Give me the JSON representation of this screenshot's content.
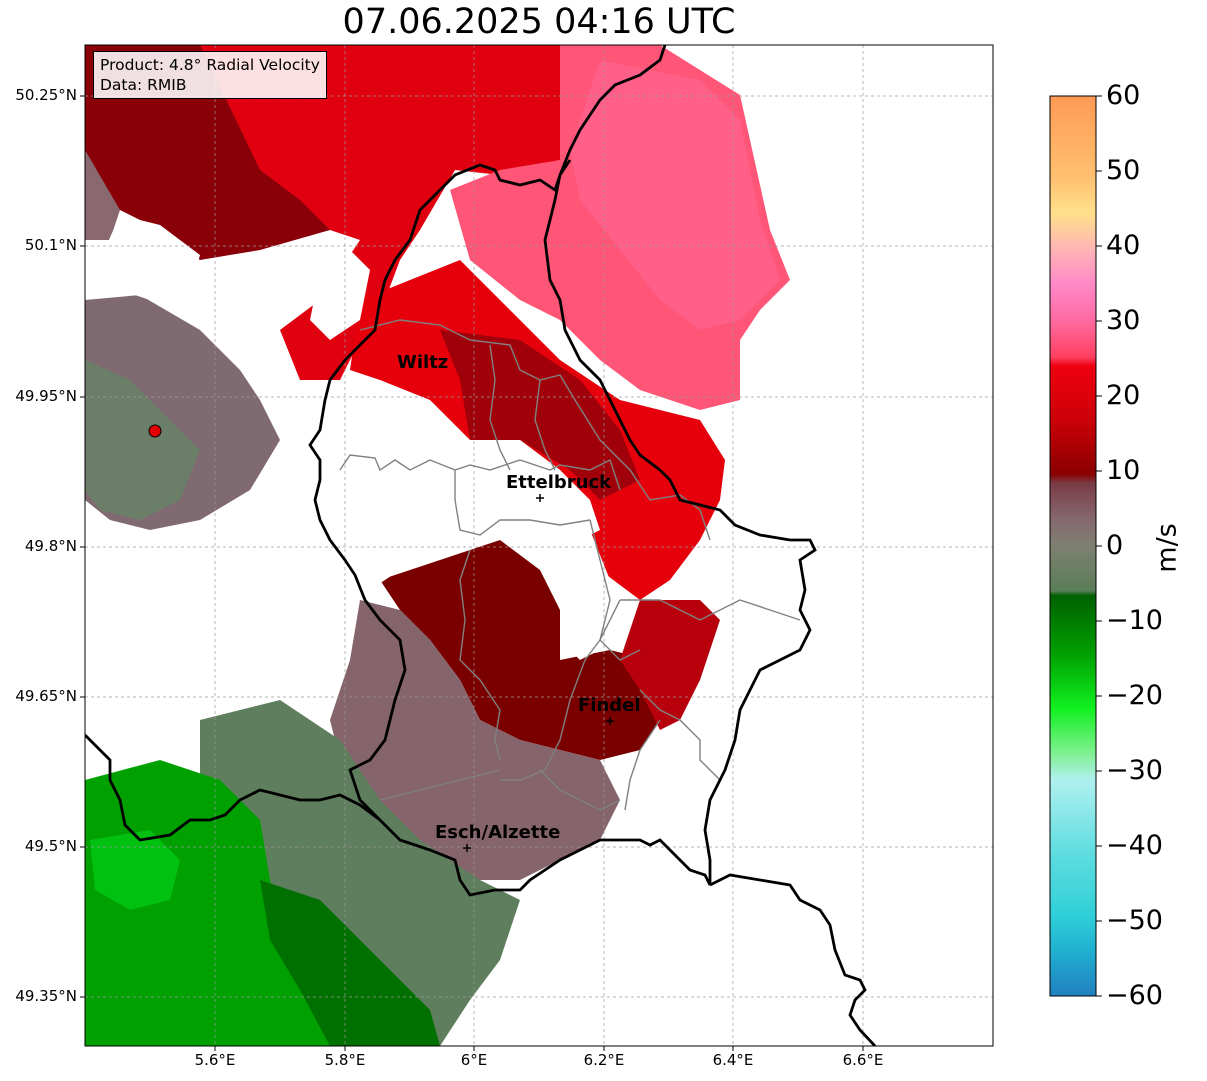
{
  "title": "07.06.2025 04:16 UTC",
  "info": {
    "product": "Product: 4.8° Radial Velocity",
    "data": "Data: RMIB"
  },
  "lat_ticks": [
    "50.25°N",
    "50.1°N",
    "49.95°N",
    "49.8°N",
    "49.65°N",
    "49.5°N",
    "49.35°N"
  ],
  "lon_ticks": [
    "5.6°E",
    "5.8°E",
    "6°E",
    "6.2°E",
    "6.4°E",
    "6.6°E"
  ],
  "colorbar": {
    "label": "m/s",
    "ticks": [
      "60",
      "50",
      "40",
      "30",
      "20",
      "10",
      "0",
      "−10",
      "−20",
      "−30",
      "−40",
      "−50",
      "−60"
    ],
    "range": [
      -60,
      60
    ]
  },
  "cities": [
    {
      "name": "Wiltz"
    },
    {
      "name": "Ettelbruck"
    },
    {
      "name": "Findel"
    },
    {
      "name": "Esch/Alzette"
    }
  ],
  "colors": {
    "strong_inbound_red": "#e8000b",
    "dark_red": "#7a0000",
    "pink": "#ff5577",
    "mauve": "#84646c",
    "grey_green": "#5e7e5e",
    "green": "#00a000",
    "radar_site": "#e00000"
  }
}
